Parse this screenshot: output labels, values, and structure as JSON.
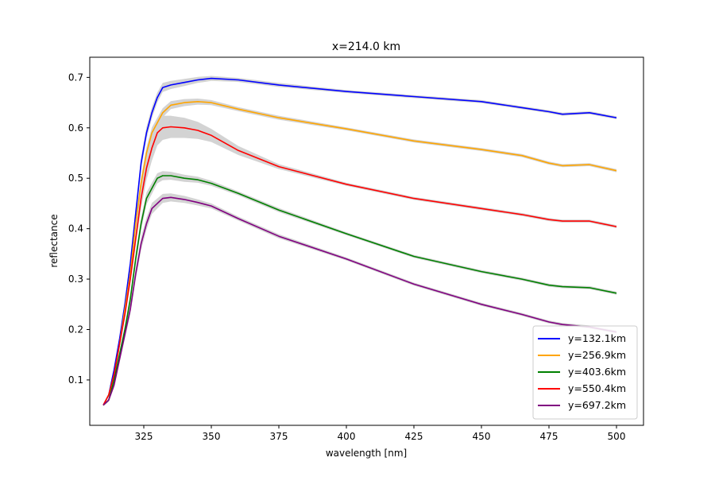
{
  "chart_data": {
    "type": "line",
    "title": "x=214.0 km",
    "xlabel": "wavelength [nm]",
    "ylabel": "reflectance",
    "xlim": [
      305,
      510
    ],
    "ylim": [
      0.01,
      0.74
    ],
    "xticks": [
      325,
      350,
      375,
      400,
      425,
      450,
      475,
      500
    ],
    "yticks": [
      0.1,
      0.2,
      0.3,
      0.4,
      0.5,
      0.6,
      0.7
    ],
    "grid": false,
    "legend_position": "lower-right",
    "uncertainty_band_color": "#d3d3d3",
    "series": [
      {
        "name": "y=132.1km",
        "color": "#0000ff",
        "x": [
          310,
          312,
          314,
          316,
          318,
          320,
          322,
          324,
          326,
          328,
          330,
          332,
          335,
          340,
          345,
          350,
          360,
          375,
          400,
          425,
          450,
          465,
          475,
          480,
          490,
          500
        ],
        "y": [
          0.05,
          0.07,
          0.12,
          0.18,
          0.25,
          0.33,
          0.43,
          0.53,
          0.59,
          0.63,
          0.66,
          0.68,
          0.685,
          0.69,
          0.695,
          0.698,
          0.695,
          0.685,
          0.672,
          0.662,
          0.652,
          0.64,
          0.632,
          0.627,
          0.63,
          0.62
        ],
        "band": [
          0.002,
          0.003,
          0.005,
          0.006,
          0.008,
          0.01,
          0.012,
          0.013,
          0.012,
          0.011,
          0.01,
          0.009,
          0.008,
          0.007,
          0.006,
          0.005,
          0.004,
          0.004,
          0.003,
          0.003,
          0.003,
          0.003,
          0.003,
          0.003,
          0.003,
          0.003
        ]
      },
      {
        "name": "y=256.9km",
        "color": "#ffa500",
        "x": [
          310,
          312,
          314,
          316,
          318,
          320,
          322,
          324,
          326,
          328,
          330,
          332,
          335,
          340,
          345,
          350,
          360,
          375,
          400,
          425,
          450,
          465,
          475,
          480,
          490,
          500
        ],
        "y": [
          0.05,
          0.07,
          0.11,
          0.17,
          0.24,
          0.31,
          0.41,
          0.49,
          0.55,
          0.59,
          0.61,
          0.63,
          0.645,
          0.65,
          0.652,
          0.65,
          0.637,
          0.62,
          0.598,
          0.574,
          0.557,
          0.545,
          0.53,
          0.525,
          0.527,
          0.515
        ],
        "band": [
          0.002,
          0.003,
          0.005,
          0.006,
          0.008,
          0.01,
          0.012,
          0.013,
          0.012,
          0.011,
          0.01,
          0.009,
          0.008,
          0.007,
          0.006,
          0.005,
          0.004,
          0.004,
          0.003,
          0.003,
          0.003,
          0.003,
          0.003,
          0.003,
          0.003,
          0.003
        ]
      },
      {
        "name": "y=403.6km",
        "color": "#008000",
        "x": [
          310,
          312,
          314,
          316,
          318,
          320,
          322,
          324,
          326,
          328,
          330,
          332,
          335,
          340,
          345,
          350,
          360,
          375,
          400,
          425,
          450,
          465,
          475,
          480,
          490,
          500
        ],
        "y": [
          0.05,
          0.06,
          0.1,
          0.15,
          0.2,
          0.26,
          0.34,
          0.41,
          0.46,
          0.48,
          0.5,
          0.505,
          0.505,
          0.5,
          0.497,
          0.49,
          0.47,
          0.437,
          0.39,
          0.345,
          0.315,
          0.3,
          0.288,
          0.285,
          0.283,
          0.272
        ],
        "band": [
          0.002,
          0.003,
          0.005,
          0.006,
          0.008,
          0.01,
          0.012,
          0.013,
          0.012,
          0.011,
          0.01,
          0.009,
          0.008,
          0.007,
          0.006,
          0.005,
          0.004,
          0.004,
          0.003,
          0.003,
          0.003,
          0.003,
          0.003,
          0.003,
          0.003,
          0.003
        ]
      },
      {
        "name": "y=550.4km",
        "color": "#ff0000",
        "x": [
          310,
          312,
          314,
          316,
          318,
          320,
          322,
          324,
          326,
          328,
          330,
          332,
          335,
          340,
          345,
          350,
          360,
          375,
          400,
          425,
          450,
          465,
          475,
          480,
          490,
          500
        ],
        "y": [
          0.05,
          0.07,
          0.11,
          0.17,
          0.23,
          0.3,
          0.38,
          0.46,
          0.52,
          0.56,
          0.59,
          0.6,
          0.602,
          0.6,
          0.595,
          0.585,
          0.555,
          0.523,
          0.488,
          0.46,
          0.44,
          0.428,
          0.418,
          0.415,
          0.415,
          0.404
        ],
        "band": [
          0.002,
          0.003,
          0.005,
          0.006,
          0.008,
          0.01,
          0.015,
          0.02,
          0.023,
          0.025,
          0.025,
          0.024,
          0.022,
          0.02,
          0.017,
          0.013,
          0.009,
          0.005,
          0.003,
          0.003,
          0.003,
          0.003,
          0.003,
          0.003,
          0.003,
          0.003
        ]
      },
      {
        "name": "y=697.2km",
        "color": "#800080",
        "x": [
          310,
          312,
          314,
          316,
          318,
          320,
          322,
          324,
          326,
          328,
          330,
          332,
          335,
          340,
          345,
          350,
          360,
          375,
          400,
          425,
          450,
          465,
          475,
          480,
          490,
          500
        ],
        "y": [
          0.05,
          0.06,
          0.09,
          0.14,
          0.19,
          0.24,
          0.31,
          0.37,
          0.41,
          0.44,
          0.45,
          0.46,
          0.462,
          0.458,
          0.452,
          0.445,
          0.42,
          0.385,
          0.34,
          0.29,
          0.25,
          0.23,
          0.215,
          0.21,
          0.205,
          0.195
        ],
        "band": [
          0.002,
          0.003,
          0.005,
          0.006,
          0.008,
          0.01,
          0.012,
          0.013,
          0.012,
          0.011,
          0.01,
          0.009,
          0.008,
          0.007,
          0.006,
          0.005,
          0.004,
          0.004,
          0.003,
          0.003,
          0.003,
          0.003,
          0.003,
          0.003,
          0.003,
          0.003
        ]
      }
    ]
  }
}
